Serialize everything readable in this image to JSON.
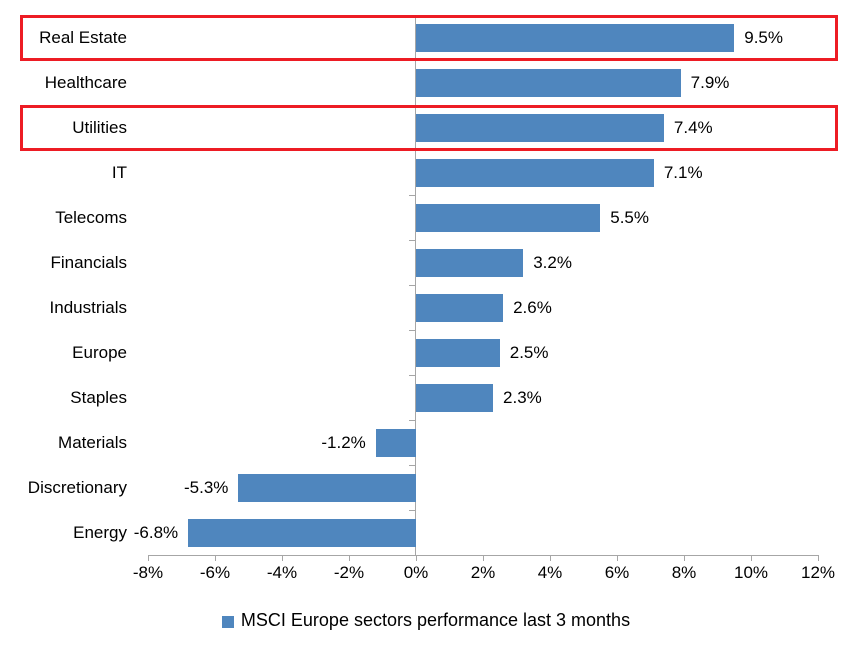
{
  "chart_data": {
    "type": "bar",
    "orientation": "horizontal",
    "legend": "MSCI Europe sectors performance last 3 months",
    "legend_position": "bottom-center",
    "categories": [
      "Real Estate",
      "Healthcare",
      "Utilities",
      "IT",
      "Telecoms",
      "Financials",
      "Industrials",
      "Europe",
      "Staples",
      "Materials",
      "Discretionary",
      "Energy"
    ],
    "values": [
      9.5,
      7.9,
      7.4,
      7.1,
      5.5,
      3.2,
      2.6,
      2.5,
      2.3,
      -1.2,
      -5.3,
      -6.8
    ],
    "data_labels": [
      "9.5%",
      "7.9%",
      "7.4%",
      "7.1%",
      "5.5%",
      "3.2%",
      "2.6%",
      "2.5%",
      "2.3%",
      "-1.2%",
      "-5.3%",
      "-6.8%"
    ],
    "x_ticks": [
      -8,
      -6,
      -4,
      -2,
      0,
      2,
      4,
      6,
      8,
      10,
      12
    ],
    "x_tick_labels": [
      "-8%",
      "-6%",
      "-4%",
      "-2%",
      "0%",
      "2%",
      "4%",
      "6%",
      "8%",
      "10%",
      "12%"
    ],
    "xlim": [
      -8,
      12
    ],
    "grid": "off",
    "bar_color": "#4f86be",
    "axis_color": "#a6a6a6",
    "text_color": "#000000",
    "highlight_box_color": "#ed1c24",
    "highlighted_categories": [
      "Real Estate",
      "Utilities"
    ]
  }
}
